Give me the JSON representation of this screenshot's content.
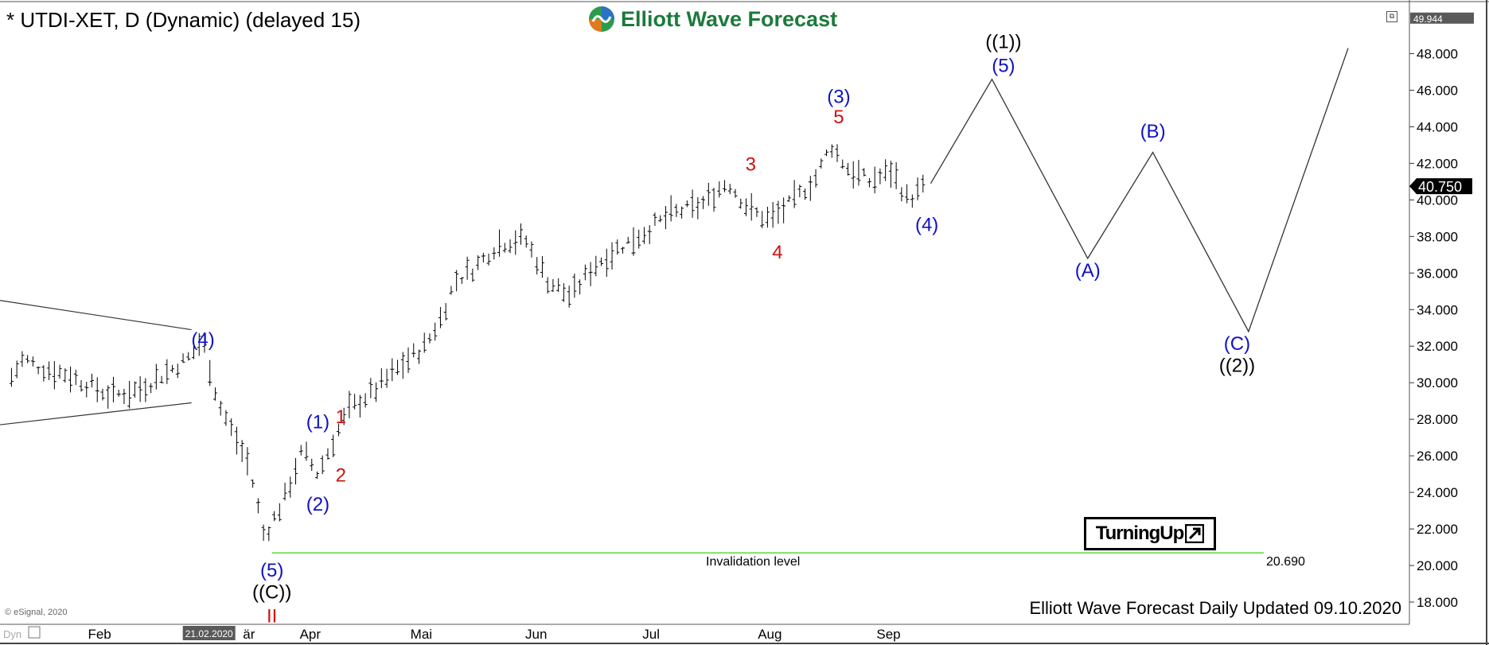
{
  "header": {
    "title": "* UTDI-XET, D (Dynamic) (delayed 15)",
    "brand": "Elliott Wave Forecast"
  },
  "footer": {
    "updated": "Elliott Wave Forecast Daily Updated 09.10.2020",
    "copyright": "© eSignal, 2020",
    "badge": "TurningUp"
  },
  "colors": {
    "blue_labels": "#1010c8",
    "red_labels": "#d01010",
    "black_labels": "#000000",
    "invalidation_line": "#66dd44",
    "price_bars": "#000000"
  },
  "invalidation": {
    "label": "Invalidation level",
    "value": "20.690",
    "price": 20.69
  },
  "chart_data": {
    "type": "ohlc",
    "symbol": "UTDI-XET",
    "interval": "D",
    "ylim": [
      17.0,
      50.5
    ],
    "y_ticks": [
      "18.000",
      "20.000",
      "22.000",
      "24.000",
      "26.000",
      "28.000",
      "30.000",
      "32.000",
      "34.000",
      "36.000",
      "38.000",
      "40.000",
      "42.000",
      "44.000",
      "46.000",
      "48.000"
    ],
    "y_tick_values": [
      18,
      20,
      22,
      24,
      26,
      28,
      30,
      32,
      34,
      36,
      38,
      40,
      42,
      44,
      46,
      48
    ],
    "top_value_label": "49.944",
    "top_value": 49.944,
    "last_price_label": "40.750",
    "last_price": 40.75,
    "x_labels": [
      "Feb",
      "Mär",
      "Apr",
      "Mai",
      "Jun",
      "Jul",
      "Aug",
      "Sep"
    ],
    "x_label_display": [
      "Feb",
      "är",
      "Apr",
      "Mai",
      "Jun",
      "Jul",
      "Aug",
      "Sep"
    ],
    "x_label_days": [
      23,
      62,
      78,
      107,
      137,
      167,
      198,
      229
    ],
    "x_range_days": [
      -3,
      365
    ],
    "date_badge": "21.02.2020",
    "date_badge_day": 52,
    "price_series_note": "daily bars Jan 2020 - Oct 2020",
    "price_path": [
      {
        "day": 0,
        "price": 30.3
      },
      {
        "day": 3,
        "price": 31.3
      },
      {
        "day": 8,
        "price": 30.8
      },
      {
        "day": 14,
        "price": 30.5
      },
      {
        "day": 20,
        "price": 29.9
      },
      {
        "day": 26,
        "price": 29.3
      },
      {
        "day": 33,
        "price": 29.6
      },
      {
        "day": 40,
        "price": 30.5
      },
      {
        "day": 46,
        "price": 31.3
      },
      {
        "day": 50,
        "price": 32.4
      },
      {
        "day": 54,
        "price": 28.9
      },
      {
        "day": 58,
        "price": 27.2
      },
      {
        "day": 62,
        "price": 25.5
      },
      {
        "day": 66,
        "price": 21.6
      },
      {
        "day": 71,
        "price": 23.5
      },
      {
        "day": 76,
        "price": 26.3
      },
      {
        "day": 80,
        "price": 25.0
      },
      {
        "day": 84,
        "price": 26.8
      },
      {
        "day": 88,
        "price": 28.5
      },
      {
        "day": 95,
        "price": 29.6
      },
      {
        "day": 102,
        "price": 31.0
      },
      {
        "day": 108,
        "price": 32.0
      },
      {
        "day": 112,
        "price": 33.5
      },
      {
        "day": 116,
        "price": 35.6
      },
      {
        "day": 121,
        "price": 36.3
      },
      {
        "day": 127,
        "price": 37.6
      },
      {
        "day": 134,
        "price": 37.9
      },
      {
        "day": 140,
        "price": 35.6
      },
      {
        "day": 146,
        "price": 34.7
      },
      {
        "day": 152,
        "price": 36.4
      },
      {
        "day": 158,
        "price": 37.3
      },
      {
        "day": 165,
        "price": 38.2
      },
      {
        "day": 172,
        "price": 39.2
      },
      {
        "day": 180,
        "price": 39.7
      },
      {
        "day": 187,
        "price": 41.0
      },
      {
        "day": 193,
        "price": 39.4
      },
      {
        "day": 198,
        "price": 38.9
      },
      {
        "day": 204,
        "price": 39.9
      },
      {
        "day": 210,
        "price": 41.2
      },
      {
        "day": 214,
        "price": 43.0
      },
      {
        "day": 218,
        "price": 41.8
      },
      {
        "day": 224,
        "price": 41.0
      },
      {
        "day": 230,
        "price": 41.6
      },
      {
        "day": 234,
        "price": 40.0
      },
      {
        "day": 239,
        "price": 40.8
      }
    ],
    "projection_path": [
      {
        "day": 240,
        "price": 40.9
      },
      {
        "day": 256,
        "price": 46.6
      },
      {
        "day": 281,
        "price": 36.8
      },
      {
        "day": 298,
        "price": 42.6
      },
      {
        "day": 323,
        "price": 32.8
      },
      {
        "day": 349,
        "price": 48.3
      }
    ],
    "triangle_lines": [
      {
        "from": {
          "day": -3,
          "price": 34.5
        },
        "to": {
          "day": 47,
          "price": 32.9
        }
      },
      {
        "from": {
          "day": -3,
          "price": 27.7
        },
        "to": {
          "day": 47,
          "price": 28.9
        }
      }
    ],
    "wave_labels": [
      {
        "text": "(4)",
        "day": 50,
        "price": 32.0,
        "color": "blue"
      },
      {
        "text": "(1)",
        "day": 80,
        "price": 27.5,
        "color": "blue"
      },
      {
        "text": "1",
        "day": 86,
        "price": 27.8,
        "color": "red"
      },
      {
        "text": "2",
        "day": 86,
        "price": 24.6,
        "color": "red"
      },
      {
        "text": "(2)",
        "day": 80,
        "price": 23.0,
        "color": "blue"
      },
      {
        "text": "(5)",
        "day": 68,
        "price": 19.4,
        "color": "blue"
      },
      {
        "text": "((C))",
        "day": 68,
        "price": 18.2,
        "color": "black"
      },
      {
        "text": "II",
        "day": 68,
        "price": 16.9,
        "color": "red"
      },
      {
        "text": "3",
        "day": 193,
        "price": 41.6,
        "color": "red"
      },
      {
        "text": "4",
        "day": 200,
        "price": 36.8,
        "color": "red"
      },
      {
        "text": "(3)",
        "day": 216,
        "price": 45.3,
        "color": "blue"
      },
      {
        "text": "5",
        "day": 216,
        "price": 44.2,
        "color": "red"
      },
      {
        "text": "(4)",
        "day": 239,
        "price": 38.3,
        "color": "blue"
      },
      {
        "text": "((1))",
        "day": 259,
        "price": 48.3,
        "color": "black"
      },
      {
        "text": "(5)",
        "day": 259,
        "price": 47.0,
        "color": "blue"
      },
      {
        "text": "(A)",
        "day": 281,
        "price": 35.8,
        "color": "blue"
      },
      {
        "text": "(B)",
        "day": 298,
        "price": 43.4,
        "color": "blue"
      },
      {
        "text": "(C)",
        "day": 320,
        "price": 31.8,
        "color": "blue"
      },
      {
        "text": "((2))",
        "day": 320,
        "price": 30.6,
        "color": "black"
      }
    ]
  }
}
